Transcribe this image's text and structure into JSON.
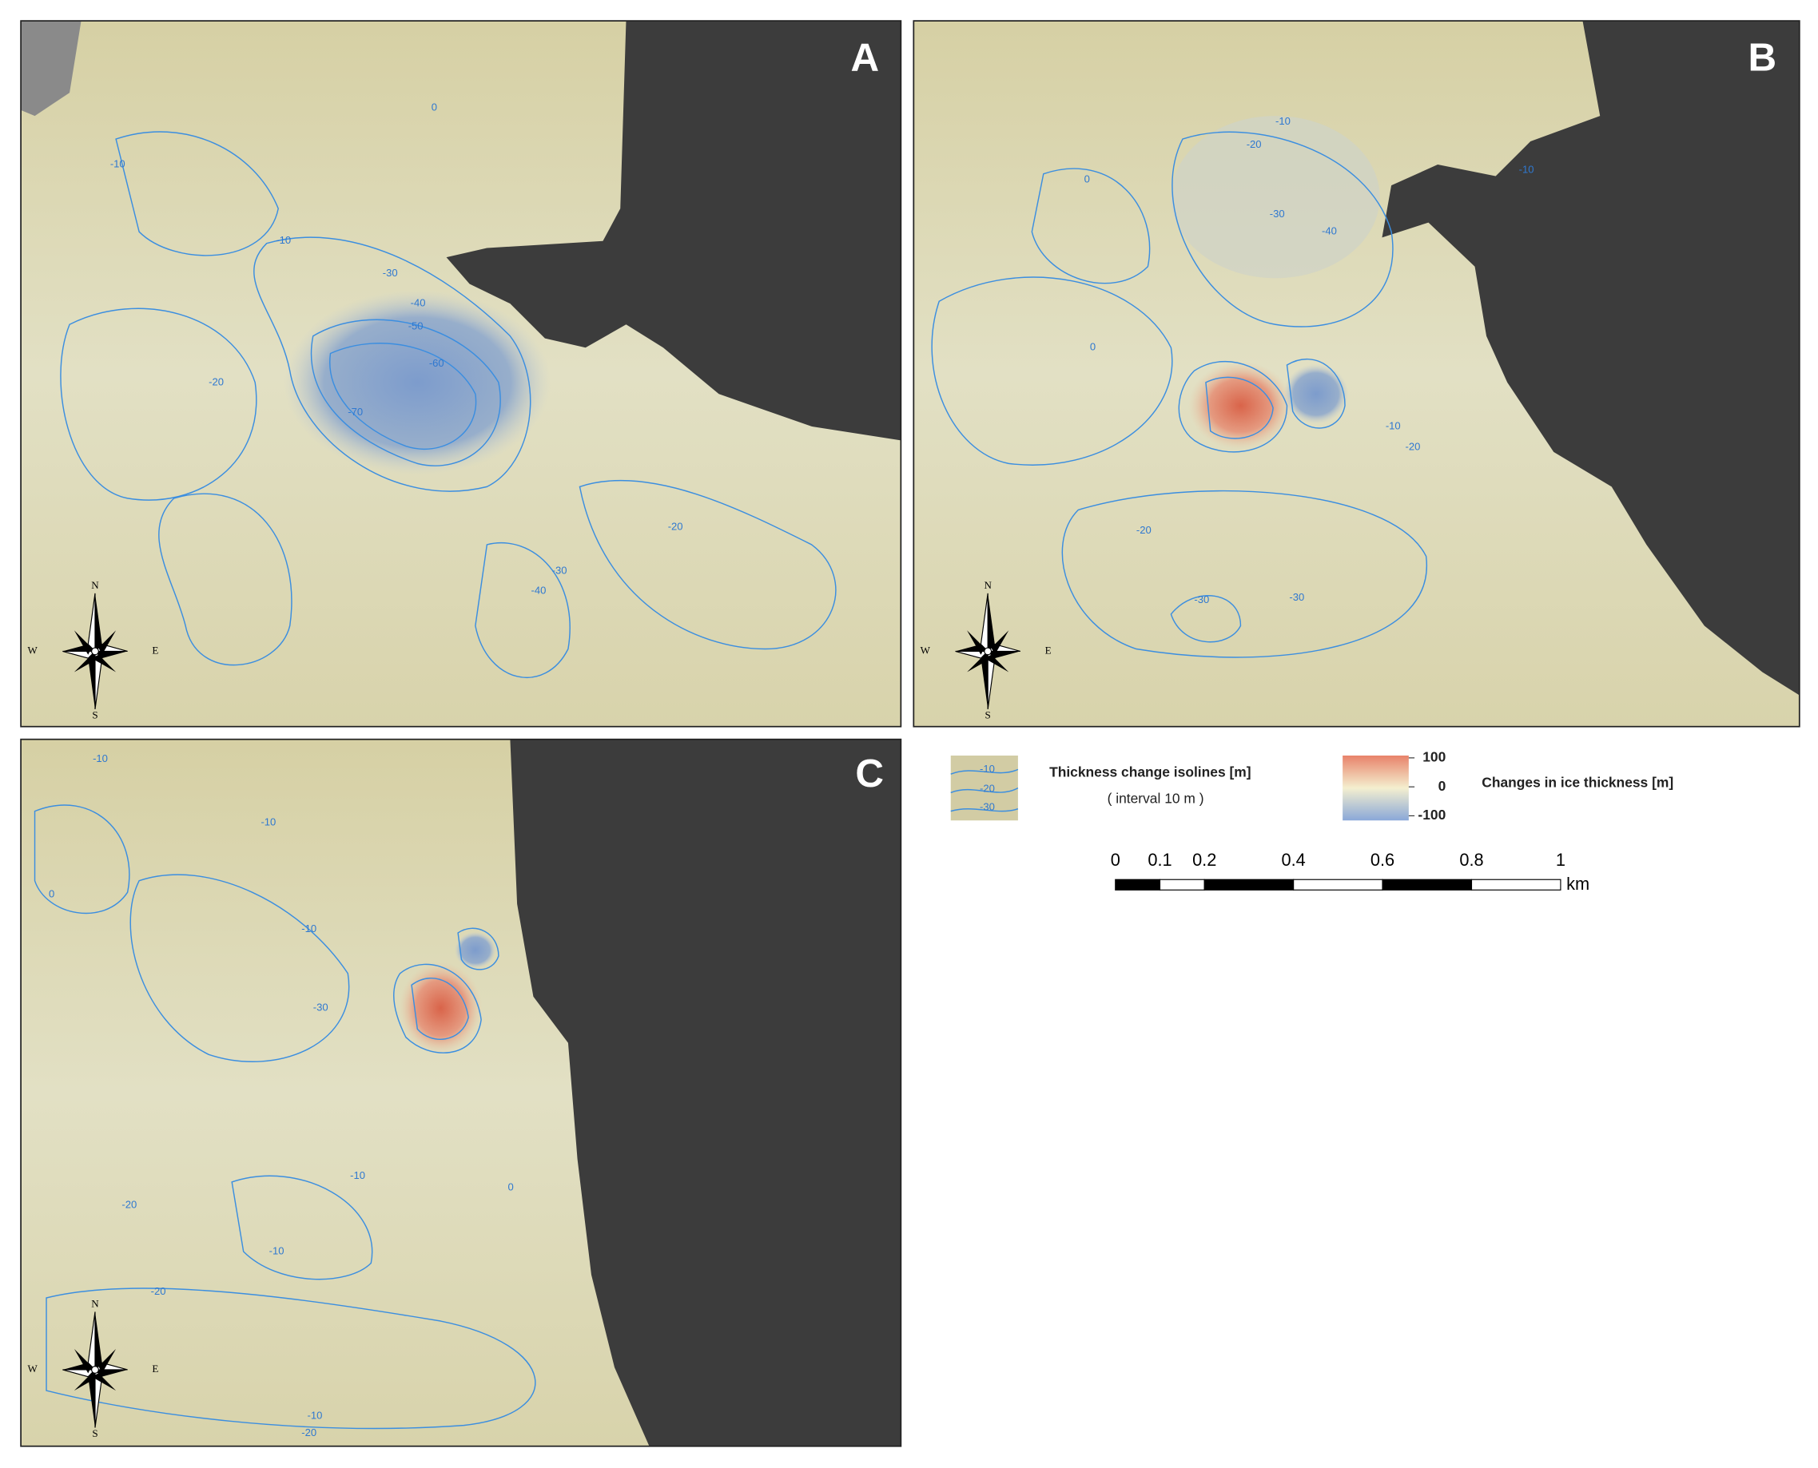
{
  "panels": [
    {
      "label": "A",
      "contour_labels": [
        "-10",
        "-20",
        "-30",
        "-40",
        "-50",
        "-60",
        "-70",
        "0",
        "-10",
        "-20",
        "-30",
        "-40"
      ]
    },
    {
      "label": "B",
      "contour_labels": [
        "-10",
        "-20",
        "-30",
        "-40",
        "0",
        "-10",
        "-20",
        "-30",
        "-30",
        "-20",
        "0",
        "-10"
      ]
    },
    {
      "label": "C",
      "contour_labels": [
        "-10",
        "0",
        "-10",
        "-10",
        "-30",
        "-10",
        "-20",
        "-10",
        "-20",
        "-10",
        "0",
        "-20"
      ]
    }
  ],
  "compass": {
    "north": "N",
    "south": "S",
    "east": "E",
    "west": "W"
  },
  "legend": {
    "isolines_title": "Thickness change isolines [m]",
    "isolines_note": "( interval 10 m )",
    "swatch_labels": [
      "-10",
      "-20",
      "-30"
    ],
    "colorbar_title": "Changes in ice thickness [m]",
    "colorbar_ticks": [
      100,
      0,
      -100
    ]
  },
  "scale_bar": {
    "ticks": [
      0,
      0.1,
      0.2,
      0.4,
      0.6,
      0.8,
      1
    ],
    "unit": "km"
  }
}
